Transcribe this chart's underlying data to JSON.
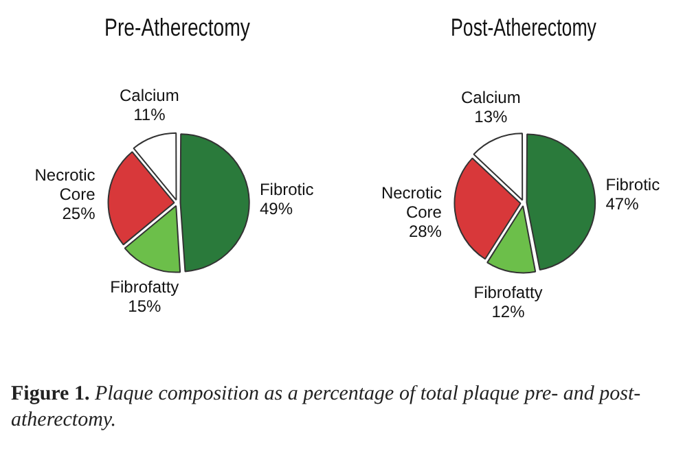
{
  "chart_data": [
    {
      "type": "pie",
      "title": "Pre-Atherectomy",
      "categories": [
        "Fibrotic",
        "Fibrofatty",
        "Necrotic Core",
        "Calcium"
      ],
      "values": [
        49,
        15,
        25,
        11
      ],
      "value_labels": [
        "49%",
        "15%",
        "25%",
        "11%"
      ],
      "colors": [
        "#2a7a3b",
        "#6cbf4a",
        "#d8383a",
        "#ffffff"
      ],
      "legend": false,
      "annotations": [
        "Figure 1.",
        "Plaque composition as a percentage of total plaque pre- and post-atherectomy."
      ]
    },
    {
      "type": "pie",
      "title": "Post-Atherectomy",
      "categories": [
        "Fibrotic",
        "Fibrofatty",
        "Necrotic Core",
        "Calcium"
      ],
      "values": [
        47,
        12,
        28,
        13
      ],
      "value_labels": [
        "47%",
        "12%",
        "28%",
        "13%"
      ],
      "colors": [
        "#2a7a3b",
        "#6cbf4a",
        "#d8383a",
        "#ffffff"
      ],
      "legend": false
    }
  ]
}
